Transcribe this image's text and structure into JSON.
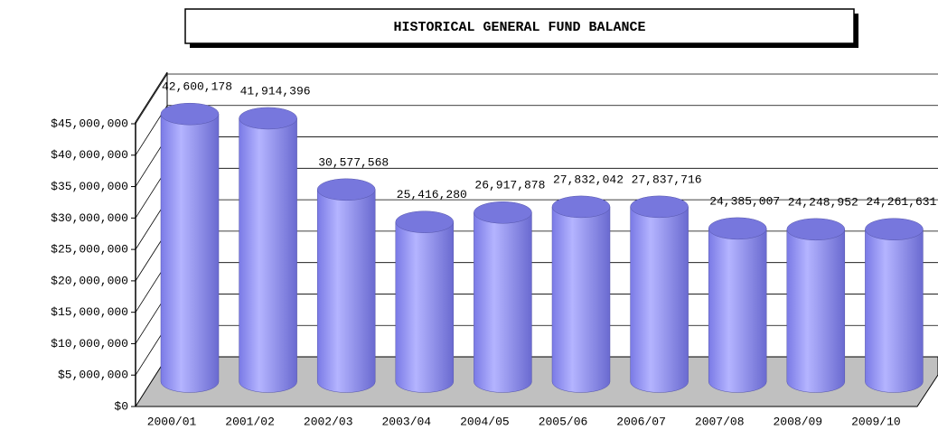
{
  "chart_data": {
    "type": "bar",
    "title": "HISTORICAL GENERAL FUND BALANCE",
    "categories": [
      "2000/01",
      "2001/02",
      "2002/03",
      "2003/04",
      "2004/05",
      "2005/06",
      "2006/07",
      "2007/08",
      "2008/09",
      "2009/10"
    ],
    "values": [
      42600178,
      41914396,
      30577568,
      25416280,
      26917878,
      27832042,
      27837716,
      24385007,
      24248952,
      24261631
    ],
    "value_labels": [
      "42,600,178",
      "41,914,396",
      "30,577,568",
      "25,416,280",
      "26,917,878",
      "27,832,042",
      "27,837,716",
      "24,385,007",
      "24,248,952",
      "24,261,631"
    ],
    "color": "#9999ff",
    "ylim": [
      0,
      45000000
    ],
    "yticks": [
      {
        "value": 0,
        "label": "$0"
      },
      {
        "value": 5000000,
        "label": "$5,000,000"
      },
      {
        "value": 10000000,
        "label": "$10,000,000"
      },
      {
        "value": 15000000,
        "label": "$15,000,000"
      },
      {
        "value": 20000000,
        "label": "$20,000,000"
      },
      {
        "value": 25000000,
        "label": "$25,000,000"
      },
      {
        "value": 30000000,
        "label": "$30,000,000"
      },
      {
        "value": 35000000,
        "label": "$35,000,000"
      },
      {
        "value": 40000000,
        "label": "$40,000,000"
      },
      {
        "value": 45000000,
        "label": "$45,000,000"
      }
    ],
    "grid": true
  }
}
